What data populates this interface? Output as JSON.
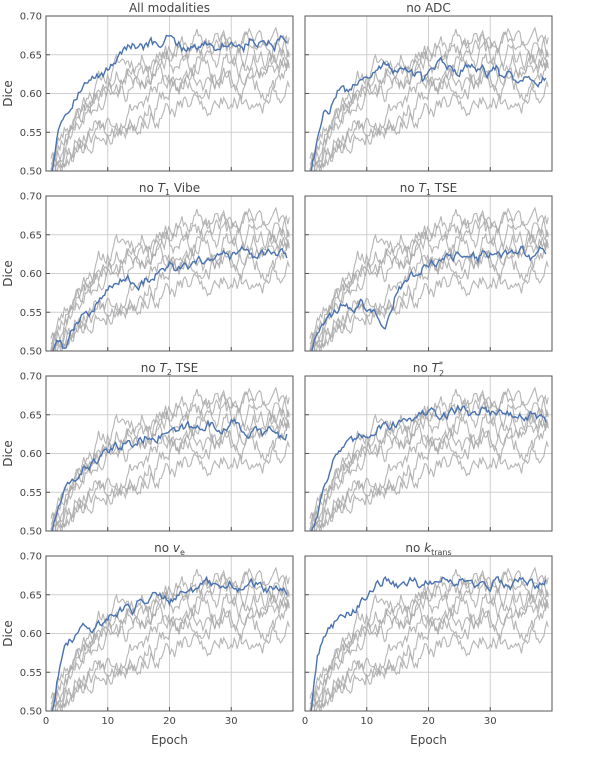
{
  "figure": {
    "ylabel": "Dice",
    "xlabel": "Epoch"
  },
  "colors": {
    "highlight": "#4a72b0",
    "background_series": "#a8a8a8",
    "grid": "#cfcfcf",
    "frame": "#555555"
  },
  "chart_data": [
    {
      "type": "line",
      "title": "All modalities",
      "xlabel": "",
      "ylabel": "Dice",
      "xlim": [
        0,
        40
      ],
      "ylim": [
        0.5,
        0.7
      ],
      "xticks": [
        0,
        10,
        20,
        30
      ],
      "yticks": [
        0.5,
        0.55,
        0.6,
        0.65,
        0.7
      ],
      "grid": true,
      "highlight": {
        "x": [
          1,
          2,
          3,
          4,
          5,
          6,
          7,
          8,
          9,
          10,
          11,
          12,
          13,
          14,
          15,
          16,
          17,
          18,
          19,
          20,
          21,
          22,
          23,
          24,
          25,
          26,
          27,
          28,
          29,
          30,
          31,
          32,
          33,
          34,
          35,
          36,
          37,
          38,
          39
        ],
        "values": [
          0.5,
          0.56,
          0.575,
          0.585,
          0.6,
          0.61,
          0.615,
          0.62,
          0.625,
          0.63,
          0.64,
          0.655,
          0.66,
          0.662,
          0.655,
          0.66,
          0.665,
          0.66,
          0.665,
          0.672,
          0.665,
          0.66,
          0.658,
          0.662,
          0.66,
          0.665,
          0.662,
          0.66,
          0.665,
          0.662,
          0.665,
          0.66,
          0.668,
          0.662,
          0.665,
          0.665,
          0.66,
          0.668,
          0.665
        ]
      }
    },
    {
      "type": "line",
      "title": "no ADC",
      "xlabel": "",
      "ylabel": "",
      "xlim": [
        0,
        40
      ],
      "ylim": [
        0.5,
        0.7
      ],
      "xticks": [
        0,
        10,
        20,
        30
      ],
      "yticks": [
        0.5,
        0.55,
        0.6,
        0.65,
        0.7
      ],
      "grid": true,
      "highlight": {
        "x": [
          1,
          2,
          3,
          4,
          5,
          6,
          7,
          8,
          9,
          10,
          11,
          12,
          13,
          14,
          15,
          16,
          17,
          18,
          19,
          20,
          21,
          22,
          23,
          24,
          25,
          26,
          27,
          28,
          29,
          30,
          31,
          32,
          33,
          34,
          35,
          36,
          37,
          38,
          39
        ],
        "values": [
          0.5,
          0.54,
          0.57,
          0.58,
          0.6,
          0.61,
          0.6,
          0.615,
          0.62,
          0.625,
          0.63,
          0.635,
          0.64,
          0.635,
          0.625,
          0.63,
          0.635,
          0.625,
          0.615,
          0.625,
          0.63,
          0.64,
          0.635,
          0.63,
          0.625,
          0.635,
          0.64,
          0.63,
          0.63,
          0.625,
          0.63,
          0.62,
          0.625,
          0.62,
          0.615,
          0.62,
          0.625,
          0.615,
          0.62
        ]
      }
    },
    {
      "type": "line",
      "title": "no T1 Vibe",
      "xlabel": "",
      "ylabel": "Dice",
      "xlim": [
        0,
        40
      ],
      "ylim": [
        0.5,
        0.7
      ],
      "xticks": [
        0,
        10,
        20,
        30
      ],
      "yticks": [
        0.5,
        0.55,
        0.6,
        0.65,
        0.7
      ],
      "grid": true,
      "highlight": {
        "x": [
          1,
          2,
          3,
          4,
          5,
          6,
          7,
          8,
          9,
          10,
          11,
          12,
          13,
          14,
          15,
          16,
          17,
          18,
          19,
          20,
          21,
          22,
          23,
          24,
          25,
          26,
          27,
          28,
          29,
          30,
          31,
          32,
          33,
          34,
          35,
          36,
          37,
          38,
          39
        ],
        "values": [
          0.5,
          0.51,
          0.505,
          0.52,
          0.54,
          0.55,
          0.545,
          0.56,
          0.57,
          0.58,
          0.585,
          0.59,
          0.6,
          0.59,
          0.58,
          0.59,
          0.595,
          0.6,
          0.605,
          0.61,
          0.6,
          0.61,
          0.605,
          0.61,
          0.615,
          0.62,
          0.615,
          0.62,
          0.625,
          0.62,
          0.625,
          0.63,
          0.625,
          0.62,
          0.625,
          0.625,
          0.62,
          0.625,
          0.62
        ]
      }
    },
    {
      "type": "line",
      "title": "no T1 TSE",
      "xlabel": "",
      "ylabel": "",
      "xlim": [
        0,
        40
      ],
      "ylim": [
        0.5,
        0.7
      ],
      "xticks": [
        0,
        10,
        20,
        30
      ],
      "yticks": [
        0.5,
        0.55,
        0.6,
        0.65,
        0.7
      ],
      "grid": true,
      "highlight": {
        "x": [
          1,
          2,
          3,
          4,
          5,
          6,
          7,
          8,
          9,
          10,
          11,
          12,
          13,
          14,
          15,
          16,
          17,
          18,
          19,
          20,
          21,
          22,
          23,
          24,
          25,
          26,
          27,
          28,
          29,
          30,
          31,
          32,
          33,
          34,
          35,
          36,
          37,
          38,
          39
        ],
        "values": [
          0.5,
          0.53,
          0.54,
          0.545,
          0.55,
          0.56,
          0.555,
          0.55,
          0.56,
          0.555,
          0.55,
          0.545,
          0.535,
          0.56,
          0.58,
          0.59,
          0.6,
          0.595,
          0.605,
          0.61,
          0.615,
          0.62,
          0.625,
          0.62,
          0.625,
          0.63,
          0.625,
          0.62,
          0.63,
          0.625,
          0.63,
          0.625,
          0.62,
          0.625,
          0.63,
          0.625,
          0.62,
          0.63,
          0.625
        ]
      }
    },
    {
      "type": "line",
      "title": "no T2 TSE",
      "xlabel": "",
      "ylabel": "Dice",
      "xlim": [
        0,
        40
      ],
      "ylim": [
        0.5,
        0.7
      ],
      "xticks": [
        0,
        10,
        20,
        30
      ],
      "yticks": [
        0.5,
        0.55,
        0.6,
        0.65,
        0.7
      ],
      "grid": true,
      "highlight": {
        "x": [
          1,
          2,
          3,
          4,
          5,
          6,
          7,
          8,
          9,
          10,
          11,
          12,
          13,
          14,
          15,
          16,
          17,
          18,
          19,
          20,
          21,
          22,
          23,
          24,
          25,
          26,
          27,
          28,
          29,
          30,
          31,
          32,
          33,
          34,
          35,
          36,
          37,
          38,
          39
        ],
        "values": [
          0.5,
          0.53,
          0.55,
          0.56,
          0.57,
          0.58,
          0.585,
          0.59,
          0.595,
          0.6,
          0.605,
          0.61,
          0.615,
          0.61,
          0.615,
          0.62,
          0.625,
          0.62,
          0.625,
          0.63,
          0.625,
          0.63,
          0.635,
          0.63,
          0.635,
          0.64,
          0.635,
          0.63,
          0.635,
          0.64,
          0.635,
          0.63,
          0.625,
          0.63,
          0.625,
          0.63,
          0.625,
          0.62,
          0.625
        ]
      }
    },
    {
      "type": "line",
      "title": "no T2*",
      "xlabel": "",
      "ylabel": "",
      "xlim": [
        0,
        40
      ],
      "ylim": [
        0.5,
        0.7
      ],
      "xticks": [
        0,
        10,
        20,
        30
      ],
      "yticks": [
        0.5,
        0.55,
        0.6,
        0.65,
        0.7
      ],
      "grid": true,
      "highlight": {
        "x": [
          1,
          2,
          3,
          4,
          5,
          6,
          7,
          8,
          9,
          10,
          11,
          12,
          13,
          14,
          15,
          16,
          17,
          18,
          19,
          20,
          21,
          22,
          23,
          24,
          25,
          26,
          27,
          28,
          29,
          30,
          31,
          32,
          33,
          34,
          35,
          36,
          37,
          38,
          39
        ],
        "values": [
          0.5,
          0.52,
          0.56,
          0.58,
          0.6,
          0.605,
          0.61,
          0.615,
          0.62,
          0.625,
          0.63,
          0.635,
          0.64,
          0.635,
          0.64,
          0.645,
          0.65,
          0.645,
          0.65,
          0.655,
          0.65,
          0.645,
          0.65,
          0.655,
          0.66,
          0.655,
          0.65,
          0.655,
          0.66,
          0.655,
          0.65,
          0.655,
          0.65,
          0.645,
          0.65,
          0.645,
          0.65,
          0.645,
          0.64
        ]
      }
    },
    {
      "type": "line",
      "title": "no ve",
      "xlabel": "Epoch",
      "ylabel": "Dice",
      "xlim": [
        0,
        40
      ],
      "ylim": [
        0.5,
        0.7
      ],
      "xticks": [
        0,
        10,
        20,
        30
      ],
      "yticks": [
        0.5,
        0.55,
        0.6,
        0.65,
        0.7
      ],
      "grid": true,
      "highlight": {
        "x": [
          1,
          2,
          3,
          4,
          5,
          6,
          7,
          8,
          9,
          10,
          11,
          12,
          13,
          14,
          15,
          16,
          17,
          18,
          19,
          20,
          21,
          22,
          23,
          24,
          25,
          26,
          27,
          28,
          29,
          30,
          31,
          32,
          33,
          34,
          35,
          36,
          37,
          38,
          39
        ],
        "values": [
          0.5,
          0.55,
          0.58,
          0.59,
          0.6,
          0.61,
          0.605,
          0.61,
          0.615,
          0.62,
          0.625,
          0.63,
          0.635,
          0.63,
          0.64,
          0.645,
          0.65,
          0.655,
          0.65,
          0.645,
          0.65,
          0.655,
          0.66,
          0.655,
          0.66,
          0.665,
          0.66,
          0.655,
          0.66,
          0.665,
          0.66,
          0.655,
          0.66,
          0.665,
          0.66,
          0.655,
          0.66,
          0.655,
          0.65
        ]
      }
    },
    {
      "type": "line",
      "title": "no ktrans",
      "xlabel": "Epoch",
      "ylabel": "",
      "xlim": [
        0,
        40
      ],
      "ylim": [
        0.5,
        0.7
      ],
      "xticks": [
        0,
        10,
        20,
        30
      ],
      "yticks": [
        0.5,
        0.55,
        0.6,
        0.65,
        0.7
      ],
      "grid": true,
      "highlight": {
        "x": [
          1,
          2,
          3,
          4,
          5,
          6,
          7,
          8,
          9,
          10,
          11,
          12,
          13,
          14,
          15,
          16,
          17,
          18,
          19,
          20,
          21,
          22,
          23,
          24,
          25,
          26,
          27,
          28,
          29,
          30,
          31,
          32,
          33,
          34,
          35,
          36,
          37,
          38,
          39
        ],
        "values": [
          0.5,
          0.57,
          0.6,
          0.61,
          0.615,
          0.62,
          0.625,
          0.63,
          0.64,
          0.65,
          0.655,
          0.665,
          0.67,
          0.665,
          0.66,
          0.665,
          0.67,
          0.665,
          0.66,
          0.665,
          0.67,
          0.675,
          0.67,
          0.665,
          0.67,
          0.665,
          0.66,
          0.665,
          0.67,
          0.665,
          0.67,
          0.665,
          0.66,
          0.665,
          0.67,
          0.665,
          0.66,
          0.665,
          0.67
        ]
      }
    }
  ]
}
